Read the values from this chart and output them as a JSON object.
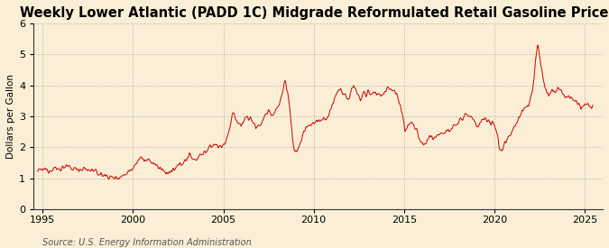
{
  "title": "Weekly Lower Atlantic (PADD 1C) Midgrade Reformulated Retail Gasoline Prices",
  "ylabel": "Dollars per Gallon",
  "source": "Source: U.S. Energy Information Administration",
  "bg_color": "#faefd6",
  "line_color": "#cc0000",
  "grid_color": "#999999",
  "xlim": [
    1994.5,
    2026.0
  ],
  "ylim": [
    0,
    6
  ],
  "yticks": [
    0,
    1,
    2,
    3,
    4,
    5,
    6
  ],
  "xticks": [
    1995,
    2000,
    2005,
    2010,
    2015,
    2020,
    2025
  ],
  "title_fontsize": 10.5,
  "ylabel_fontsize": 7.5,
  "source_fontsize": 7,
  "tick_fontsize": 8,
  "anchors": [
    [
      1994.7,
      1.22
    ],
    [
      1994.9,
      1.25
    ],
    [
      1995.1,
      1.28
    ],
    [
      1995.3,
      1.26
    ],
    [
      1995.5,
      1.3
    ],
    [
      1995.7,
      1.32
    ],
    [
      1995.9,
      1.28
    ],
    [
      1996.1,
      1.35
    ],
    [
      1996.3,
      1.38
    ],
    [
      1996.5,
      1.32
    ],
    [
      1996.7,
      1.3
    ],
    [
      1996.9,
      1.32
    ],
    [
      1997.1,
      1.28
    ],
    [
      1997.3,
      1.3
    ],
    [
      1997.5,
      1.25
    ],
    [
      1997.7,
      1.28
    ],
    [
      1997.9,
      1.2
    ],
    [
      1998.1,
      1.15
    ],
    [
      1998.3,
      1.1
    ],
    [
      1998.5,
      1.08
    ],
    [
      1998.7,
      1.05
    ],
    [
      1998.9,
      1.0
    ],
    [
      1999.1,
      1.02
    ],
    [
      1999.3,
      1.05
    ],
    [
      1999.5,
      1.1
    ],
    [
      1999.7,
      1.2
    ],
    [
      1999.9,
      1.28
    ],
    [
      2000.1,
      1.45
    ],
    [
      2000.3,
      1.6
    ],
    [
      2000.5,
      1.65
    ],
    [
      2000.7,
      1.55
    ],
    [
      2000.9,
      1.55
    ],
    [
      2001.1,
      1.5
    ],
    [
      2001.3,
      1.4
    ],
    [
      2001.5,
      1.3
    ],
    [
      2001.7,
      1.25
    ],
    [
      2001.9,
      1.15
    ],
    [
      2002.1,
      1.2
    ],
    [
      2002.3,
      1.25
    ],
    [
      2002.5,
      1.4
    ],
    [
      2002.7,
      1.5
    ],
    [
      2002.9,
      1.55
    ],
    [
      2003.1,
      1.75
    ],
    [
      2003.3,
      1.65
    ],
    [
      2003.5,
      1.6
    ],
    [
      2003.7,
      1.75
    ],
    [
      2003.9,
      1.8
    ],
    [
      2004.1,
      1.9
    ],
    [
      2004.3,
      2.0
    ],
    [
      2004.5,
      2.1
    ],
    [
      2004.7,
      2.05
    ],
    [
      2004.9,
      2.0
    ],
    [
      2005.1,
      2.15
    ],
    [
      2005.2,
      2.3
    ],
    [
      2005.3,
      2.5
    ],
    [
      2005.4,
      2.7
    ],
    [
      2005.5,
      3.0
    ],
    [
      2005.6,
      3.1
    ],
    [
      2005.7,
      2.9
    ],
    [
      2005.8,
      2.8
    ],
    [
      2005.9,
      2.75
    ],
    [
      2006.0,
      2.7
    ],
    [
      2006.1,
      2.8
    ],
    [
      2006.2,
      2.95
    ],
    [
      2006.3,
      3.0
    ],
    [
      2006.4,
      2.9
    ],
    [
      2006.5,
      3.0
    ],
    [
      2006.6,
      2.85
    ],
    [
      2006.7,
      2.75
    ],
    [
      2006.8,
      2.6
    ],
    [
      2006.9,
      2.65
    ],
    [
      2007.0,
      2.7
    ],
    [
      2007.1,
      2.8
    ],
    [
      2007.2,
      2.9
    ],
    [
      2007.3,
      3.0
    ],
    [
      2007.4,
      3.1
    ],
    [
      2007.5,
      3.2
    ],
    [
      2007.6,
      3.1
    ],
    [
      2007.7,
      3.0
    ],
    [
      2007.8,
      3.1
    ],
    [
      2007.9,
      3.2
    ],
    [
      2008.0,
      3.3
    ],
    [
      2008.1,
      3.4
    ],
    [
      2008.2,
      3.6
    ],
    [
      2008.3,
      3.8
    ],
    [
      2008.35,
      4.0
    ],
    [
      2008.4,
      4.15
    ],
    [
      2008.45,
      4.1
    ],
    [
      2008.5,
      3.9
    ],
    [
      2008.55,
      3.8
    ],
    [
      2008.6,
      3.6
    ],
    [
      2008.65,
      3.4
    ],
    [
      2008.7,
      3.1
    ],
    [
      2008.75,
      2.8
    ],
    [
      2008.8,
      2.5
    ],
    [
      2008.85,
      2.2
    ],
    [
      2008.9,
      2.0
    ],
    [
      2008.95,
      1.9
    ],
    [
      2009.0,
      1.85
    ],
    [
      2009.1,
      1.9
    ],
    [
      2009.2,
      2.0
    ],
    [
      2009.3,
      2.2
    ],
    [
      2009.4,
      2.4
    ],
    [
      2009.5,
      2.55
    ],
    [
      2009.6,
      2.6
    ],
    [
      2009.7,
      2.65
    ],
    [
      2009.8,
      2.7
    ],
    [
      2009.9,
      2.75
    ],
    [
      2010.0,
      2.8
    ],
    [
      2010.2,
      2.85
    ],
    [
      2010.4,
      2.85
    ],
    [
      2010.6,
      2.9
    ],
    [
      2010.8,
      2.95
    ],
    [
      2011.0,
      3.3
    ],
    [
      2011.2,
      3.7
    ],
    [
      2011.4,
      3.85
    ],
    [
      2011.5,
      3.9
    ],
    [
      2011.6,
      3.75
    ],
    [
      2011.7,
      3.7
    ],
    [
      2011.8,
      3.6
    ],
    [
      2011.9,
      3.5
    ],
    [
      2012.0,
      3.7
    ],
    [
      2012.1,
      3.9
    ],
    [
      2012.2,
      3.95
    ],
    [
      2012.3,
      3.85
    ],
    [
      2012.4,
      3.75
    ],
    [
      2012.5,
      3.6
    ],
    [
      2012.6,
      3.55
    ],
    [
      2012.7,
      3.75
    ],
    [
      2012.8,
      3.8
    ],
    [
      2012.9,
      3.6
    ],
    [
      2013.0,
      3.8
    ],
    [
      2013.2,
      3.75
    ],
    [
      2013.4,
      3.8
    ],
    [
      2013.6,
      3.7
    ],
    [
      2013.8,
      3.65
    ],
    [
      2014.0,
      3.85
    ],
    [
      2014.1,
      3.9
    ],
    [
      2014.2,
      3.88
    ],
    [
      2014.3,
      3.85
    ],
    [
      2014.4,
      3.82
    ],
    [
      2014.5,
      3.8
    ],
    [
      2014.6,
      3.7
    ],
    [
      2014.7,
      3.55
    ],
    [
      2014.8,
      3.4
    ],
    [
      2014.9,
      3.1
    ],
    [
      2015.0,
      2.8
    ],
    [
      2015.05,
      2.5
    ],
    [
      2015.1,
      2.55
    ],
    [
      2015.2,
      2.7
    ],
    [
      2015.3,
      2.75
    ],
    [
      2015.4,
      2.8
    ],
    [
      2015.5,
      2.75
    ],
    [
      2015.6,
      2.65
    ],
    [
      2015.7,
      2.55
    ],
    [
      2015.8,
      2.35
    ],
    [
      2015.9,
      2.2
    ],
    [
      2016.0,
      2.1
    ],
    [
      2016.1,
      2.05
    ],
    [
      2016.2,
      2.1
    ],
    [
      2016.3,
      2.2
    ],
    [
      2016.4,
      2.3
    ],
    [
      2016.5,
      2.35
    ],
    [
      2016.6,
      2.3
    ],
    [
      2016.7,
      2.35
    ],
    [
      2016.8,
      2.4
    ],
    [
      2016.9,
      2.45
    ],
    [
      2017.0,
      2.45
    ],
    [
      2017.2,
      2.5
    ],
    [
      2017.4,
      2.55
    ],
    [
      2017.5,
      2.55
    ],
    [
      2017.6,
      2.6
    ],
    [
      2017.7,
      2.65
    ],
    [
      2017.8,
      2.7
    ],
    [
      2017.9,
      2.75
    ],
    [
      2018.0,
      2.8
    ],
    [
      2018.1,
      2.9
    ],
    [
      2018.2,
      2.95
    ],
    [
      2018.3,
      3.0
    ],
    [
      2018.4,
      3.1
    ],
    [
      2018.5,
      3.05
    ],
    [
      2018.6,
      3.0
    ],
    [
      2018.7,
      2.95
    ],
    [
      2018.8,
      2.9
    ],
    [
      2018.9,
      2.8
    ],
    [
      2019.0,
      2.7
    ],
    [
      2019.1,
      2.65
    ],
    [
      2019.2,
      2.75
    ],
    [
      2019.3,
      2.85
    ],
    [
      2019.4,
      2.9
    ],
    [
      2019.5,
      2.85
    ],
    [
      2019.6,
      2.8
    ],
    [
      2019.7,
      2.75
    ],
    [
      2019.8,
      2.8
    ],
    [
      2019.9,
      2.85
    ],
    [
      2020.0,
      2.7
    ],
    [
      2020.1,
      2.6
    ],
    [
      2020.2,
      2.3
    ],
    [
      2020.25,
      2.0
    ],
    [
      2020.3,
      1.95
    ],
    [
      2020.35,
      1.9
    ],
    [
      2020.4,
      1.85
    ],
    [
      2020.45,
      1.95
    ],
    [
      2020.5,
      2.05
    ],
    [
      2020.6,
      2.15
    ],
    [
      2020.7,
      2.25
    ],
    [
      2020.8,
      2.35
    ],
    [
      2020.9,
      2.4
    ],
    [
      2021.0,
      2.55
    ],
    [
      2021.1,
      2.65
    ],
    [
      2021.2,
      2.75
    ],
    [
      2021.3,
      2.9
    ],
    [
      2021.4,
      3.0
    ],
    [
      2021.5,
      3.15
    ],
    [
      2021.6,
      3.2
    ],
    [
      2021.7,
      3.25
    ],
    [
      2021.8,
      3.3
    ],
    [
      2021.9,
      3.35
    ],
    [
      2022.0,
      3.6
    ],
    [
      2022.1,
      3.8
    ],
    [
      2022.2,
      4.2
    ],
    [
      2022.25,
      4.6
    ],
    [
      2022.3,
      4.9
    ],
    [
      2022.35,
      5.1
    ],
    [
      2022.4,
      5.3
    ],
    [
      2022.45,
      5.2
    ],
    [
      2022.5,
      5.0
    ],
    [
      2022.55,
      4.8
    ],
    [
      2022.6,
      4.6
    ],
    [
      2022.7,
      4.2
    ],
    [
      2022.8,
      3.9
    ],
    [
      2022.9,
      3.8
    ],
    [
      2023.0,
      3.7
    ],
    [
      2023.1,
      3.75
    ],
    [
      2023.2,
      3.8
    ],
    [
      2023.3,
      3.85
    ],
    [
      2023.4,
      3.8
    ],
    [
      2023.5,
      3.9
    ],
    [
      2023.6,
      3.85
    ],
    [
      2023.7,
      3.8
    ],
    [
      2023.8,
      3.75
    ],
    [
      2023.9,
      3.65
    ],
    [
      2024.0,
      3.6
    ],
    [
      2024.1,
      3.65
    ],
    [
      2024.2,
      3.6
    ],
    [
      2024.3,
      3.55
    ],
    [
      2024.4,
      3.5
    ],
    [
      2024.5,
      3.45
    ],
    [
      2024.6,
      3.4
    ],
    [
      2024.7,
      3.35
    ],
    [
      2024.8,
      3.3
    ],
    [
      2024.9,
      3.3
    ],
    [
      2025.0,
      3.35
    ],
    [
      2025.2,
      3.35
    ],
    [
      2025.4,
      3.3
    ]
  ]
}
